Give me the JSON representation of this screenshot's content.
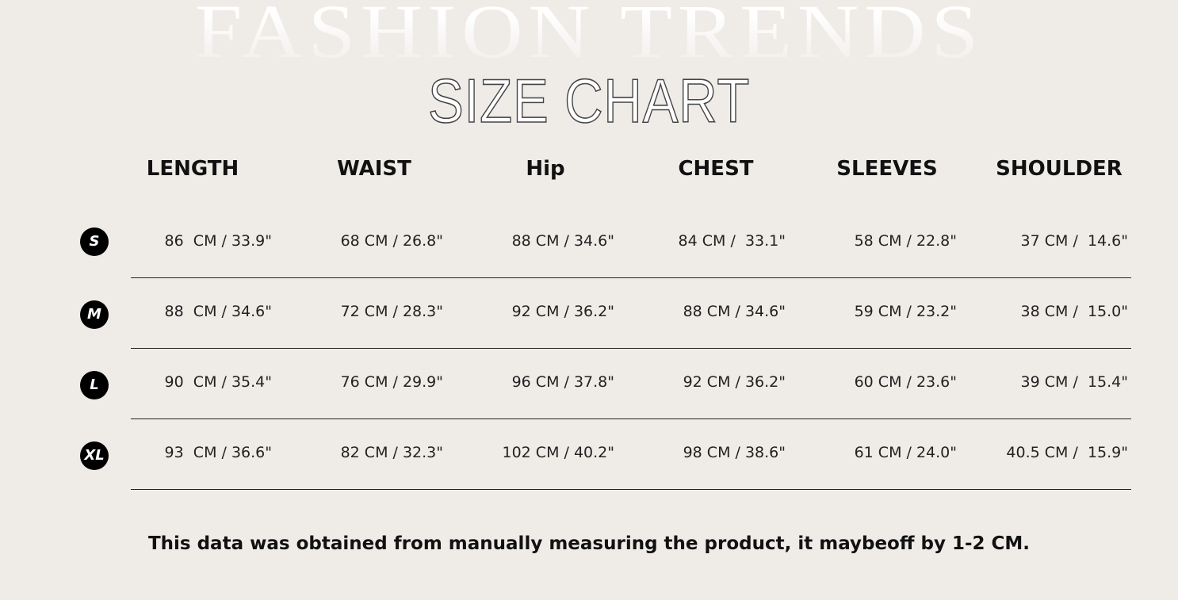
{
  "background_word": "FASHION TRENDS",
  "title": "SIZE CHART",
  "columns": [
    "LENGTH",
    "WAIST",
    "Hip",
    "CHEST",
    "SLEEVES",
    "SHOULDER"
  ],
  "rows": [
    {
      "size": "S",
      "values": [
        "86  CM / 33.9\"",
        "68 CM / 26.8\"",
        "88 CM / 34.6\"",
        "84 CM /  33.1\"",
        "58 CM / 22.8\"",
        "37 CM /  14.6\""
      ]
    },
    {
      "size": "M",
      "values": [
        "88  CM / 34.6\"",
        "72 CM / 28.3\"",
        "92 CM / 36.2\"",
        "88 CM / 34.6\"",
        "59 CM / 23.2\"",
        "38 CM /  15.0\""
      ]
    },
    {
      "size": "L",
      "values": [
        "90  CM / 35.4\"",
        "76 CM / 29.9\"",
        "96 CM / 37.8\"",
        "92 CM / 36.2\"",
        "60 CM / 23.6\"",
        "39 CM /  15.4\""
      ]
    },
    {
      "size": "XL",
      "values": [
        "93  CM / 36.6\"",
        "82 CM / 32.3\"",
        "102 CM / 40.2\"",
        "98 CM / 38.6\"",
        "61 CM / 24.0\"",
        "40.5 CM /  15.9\""
      ]
    }
  ],
  "note": "This data was obtained from manually measuring the product, it maybeoff by 1-2 CM.",
  "colors": {
    "background": "#efebe7",
    "badge": "#000000",
    "text": "#111111"
  }
}
